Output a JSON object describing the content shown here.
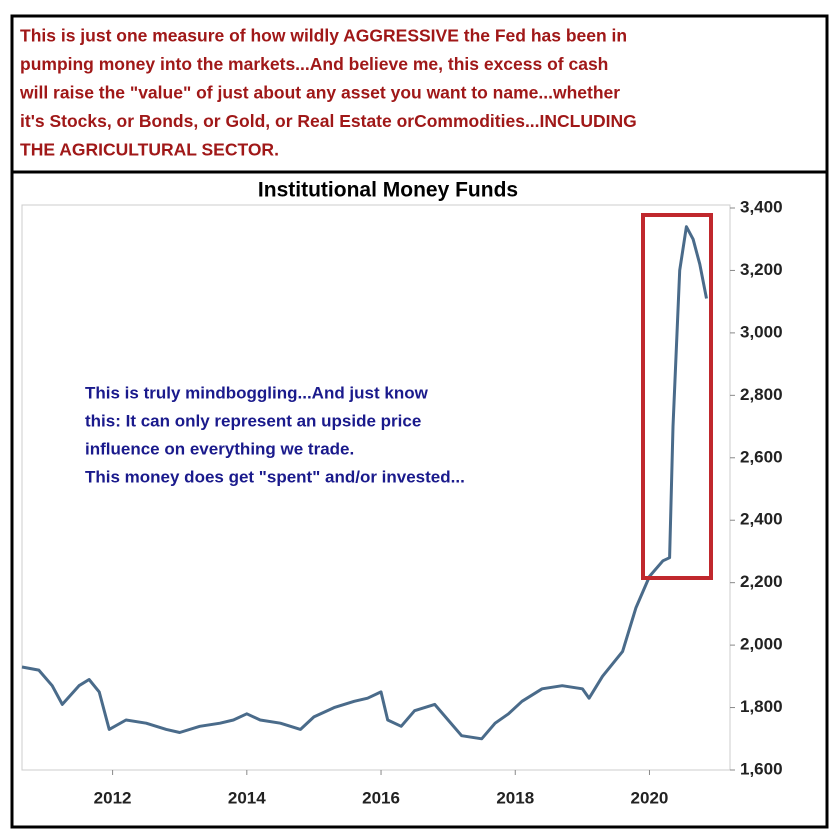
{
  "chart_data": {
    "type": "line",
    "header_lines": [
      "This is just one measure of how wildly AGGRESSIVE the Fed has been in",
      "pumping money into the markets...And believe me, this excess of cash",
      "will raise the \"value\" of just about any asset you want to name...whether",
      "it's Stocks, or Bonds, or Gold, or Real Estate orCommodities...INCLUDING",
      "THE AGRICULTURAL SECTOR."
    ],
    "title": "Institutional Money Funds",
    "annotation_lines": [
      "This is truly mindboggling...And just know",
      "this: It can only represent an upside price",
      "influence on everything we trade.",
      "This money does get \"spent\" and/or invested..."
    ],
    "color": "#4a6b8a",
    "x": [
      2010.65,
      2010.9,
      2011.1,
      2011.25,
      2011.5,
      2011.65,
      2011.8,
      2011.95,
      2012.2,
      2012.5,
      2012.8,
      2013.0,
      2013.3,
      2013.6,
      2013.8,
      2014.0,
      2014.2,
      2014.5,
      2014.8,
      2015.0,
      2015.3,
      2015.6,
      2015.8,
      2016.0,
      2016.1,
      2016.3,
      2016.5,
      2016.8,
      2017.0,
      2017.2,
      2017.5,
      2017.7,
      2017.9,
      2018.1,
      2018.4,
      2018.7,
      2019.0,
      2019.1,
      2019.3,
      2019.6,
      2019.8,
      2020.0,
      2020.2,
      2020.3,
      2020.35,
      2020.45,
      2020.55,
      2020.65,
      2020.75,
      2020.85
    ],
    "values": [
      1930,
      1920,
      1870,
      1810,
      1870,
      1890,
      1850,
      1730,
      1760,
      1750,
      1730,
      1720,
      1740,
      1750,
      1760,
      1780,
      1760,
      1750,
      1730,
      1770,
      1800,
      1820,
      1830,
      1850,
      1760,
      1740,
      1790,
      1810,
      1760,
      1710,
      1700,
      1750,
      1780,
      1820,
      1860,
      1870,
      1860,
      1830,
      1900,
      1980,
      2120,
      2220,
      2270,
      2280,
      2700,
      3200,
      3340,
      3300,
      3220,
      3110
    ],
    "xlim": [
      2010.65,
      2021.2
    ],
    "xticks": [
      2012,
      2014,
      2016,
      2018,
      2020
    ],
    "ylim": [
      1600,
      3400
    ],
    "yticks": [
      {
        "value": 1600,
        "label": "1,600"
      },
      {
        "value": 1800,
        "label": "1,800"
      },
      {
        "value": 2000,
        "label": "2,000"
      },
      {
        "value": 2200,
        "label": "2,200"
      },
      {
        "value": 2400,
        "label": "2,400"
      },
      {
        "value": 2600,
        "label": "2,600"
      },
      {
        "value": 2800,
        "label": "2,800"
      },
      {
        "value": 3000,
        "label": "3,000"
      },
      {
        "value": 3200,
        "label": "3,200"
      },
      {
        "value": 3400,
        "label": "3,400"
      }
    ]
  }
}
